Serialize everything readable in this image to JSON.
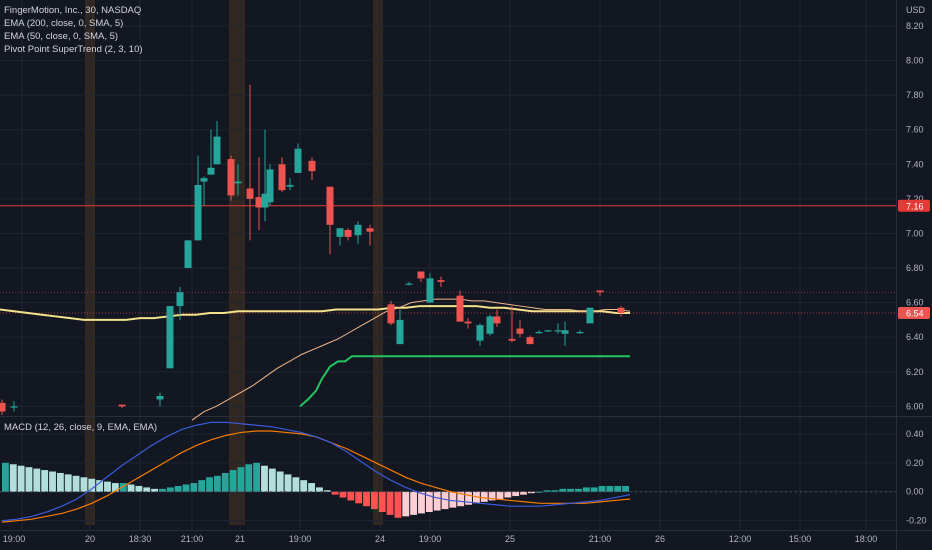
{
  "legend": {
    "title": "FingerMotion, Inc., 30, NASDAQ",
    "ema200": "EMA (200, close, 0, SMA, 5)",
    "ema50": "EMA (50, close, 0, SMA, 5)",
    "supertrend": "Pivot Point SuperTrend (2, 3, 10)",
    "macd": "MACD (12, 26, close, 9, EMA, EMA)"
  },
  "currency": "USD",
  "price_tag": "6.54",
  "line_tag": "7.16",
  "colors": {
    "background": "#131722",
    "up": "#26a69a",
    "down": "#ef5350",
    "ema200": "#f5e28a",
    "ema50": "#f0b98c",
    "supertrend": "#22c55e",
    "hline": "#e53935",
    "macd_line": "#3b5bdb",
    "signal_line": "#f57c00",
    "session_band": "#a86a1e"
  },
  "chart_data": [
    {
      "type": "candlestick",
      "title": "FingerMotion, Inc., 30, NASDAQ",
      "y_ticks": [
        "8.20",
        "8.00",
        "7.80",
        "7.60",
        "7.40",
        "7.20",
        "7.00",
        "6.80",
        "6.60",
        "6.40",
        "6.20",
        "6.00"
      ],
      "ylim": [
        5.95,
        8.35
      ],
      "x_ticks": [
        "19:00",
        "20",
        "18:30",
        "21:00",
        "21",
        "19:00",
        "24",
        "19:00",
        "25",
        "21:00",
        "26",
        "12:00",
        "15:00",
        "18:00"
      ],
      "horizontal_line": 7.16,
      "last_price": 6.54,
      "candles": [
        {
          "o": 6.02,
          "h": 6.04,
          "l": 5.95,
          "c": 5.97
        },
        {
          "o": 6.0,
          "h": 6.03,
          "l": 5.97,
          "c": 6.0
        },
        {
          "o": 6.01,
          "h": 6.01,
          "l": 5.99,
          "c": 6.0
        },
        {
          "o": 6.04,
          "h": 6.08,
          "l": 6.0,
          "c": 6.06
        },
        {
          "o": 6.22,
          "h": 6.58,
          "l": 6.22,
          "c": 6.58
        },
        {
          "o": 6.58,
          "h": 6.69,
          "l": 6.5,
          "c": 6.66
        },
        {
          "o": 6.8,
          "h": 6.96,
          "l": 6.8,
          "c": 6.96
        },
        {
          "o": 6.96,
          "h": 7.45,
          "l": 6.96,
          "c": 7.28
        },
        {
          "o": 7.3,
          "h": 7.33,
          "l": 7.16,
          "c": 7.32
        },
        {
          "o": 7.34,
          "h": 7.6,
          "l": 7.34,
          "c": 7.38
        },
        {
          "o": 7.4,
          "h": 7.65,
          "l": 7.4,
          "c": 7.56
        },
        {
          "o": 7.43,
          "h": 7.45,
          "l": 7.19,
          "c": 7.22
        },
        {
          "o": 7.29,
          "h": 7.4,
          "l": 7.22,
          "c": 7.3
        },
        {
          "o": 7.26,
          "h": 7.86,
          "l": 6.96,
          "c": 7.2
        },
        {
          "o": 7.21,
          "h": 7.44,
          "l": 7.02,
          "c": 7.15
        },
        {
          "o": 7.15,
          "h": 7.6,
          "l": 7.07,
          "c": 7.23
        },
        {
          "o": 7.18,
          "h": 7.4,
          "l": 7.16,
          "c": 7.37
        },
        {
          "o": 7.4,
          "h": 7.44,
          "l": 7.24,
          "c": 7.25
        },
        {
          "o": 7.27,
          "h": 7.32,
          "l": 7.25,
          "c": 7.28
        },
        {
          "o": 7.35,
          "h": 7.52,
          "l": 7.35,
          "c": 7.49
        },
        {
          "o": 7.42,
          "h": 7.44,
          "l": 7.31,
          "c": 7.36
        },
        {
          "o": 7.27,
          "h": 7.27,
          "l": 6.88,
          "c": 7.05
        },
        {
          "o": 6.98,
          "h": 7.03,
          "l": 6.93,
          "c": 7.03
        },
        {
          "o": 7.02,
          "h": 7.03,
          "l": 6.96,
          "c": 6.98
        },
        {
          "o": 6.99,
          "h": 7.07,
          "l": 6.94,
          "c": 7.05
        },
        {
          "o": 7.03,
          "h": 7.05,
          "l": 6.93,
          "c": 7.01
        },
        {
          "o": 6.59,
          "h": 6.61,
          "l": 6.47,
          "c": 6.48
        },
        {
          "o": 6.36,
          "h": 6.56,
          "l": 6.36,
          "c": 6.5
        },
        {
          "o": 6.71,
          "h": 6.72,
          "l": 6.7,
          "c": 6.71
        },
        {
          "o": 6.78,
          "h": 6.78,
          "l": 6.72,
          "c": 6.74
        },
        {
          "o": 6.6,
          "h": 6.77,
          "l": 6.6,
          "c": 6.74
        },
        {
          "o": 6.73,
          "h": 6.75,
          "l": 6.69,
          "c": 6.72
        },
        {
          "o": 6.64,
          "h": 6.67,
          "l": 6.49,
          "c": 6.49
        },
        {
          "o": 6.49,
          "h": 6.51,
          "l": 6.45,
          "c": 6.48
        },
        {
          "o": 6.38,
          "h": 6.48,
          "l": 6.35,
          "c": 6.47
        },
        {
          "o": 6.42,
          "h": 6.53,
          "l": 6.41,
          "c": 6.52
        },
        {
          "o": 6.52,
          "h": 6.56,
          "l": 6.46,
          "c": 6.48
        },
        {
          "o": 6.39,
          "h": 6.58,
          "l": 6.37,
          "c": 6.38
        },
        {
          "o": 6.45,
          "h": 6.5,
          "l": 6.4,
          "c": 6.42
        },
        {
          "o": 6.4,
          "h": 6.41,
          "l": 6.36,
          "c": 6.36
        },
        {
          "o": 6.43,
          "h": 6.44,
          "l": 6.42,
          "c": 6.43
        },
        {
          "o": 6.44,
          "h": 6.44,
          "l": 6.43,
          "c": 6.44
        },
        {
          "o": 6.44,
          "h": 6.48,
          "l": 6.42,
          "c": 6.44
        },
        {
          "o": 6.42,
          "h": 6.49,
          "l": 6.35,
          "c": 6.44
        },
        {
          "o": 6.43,
          "h": 6.44,
          "l": 6.42,
          "c": 6.43
        },
        {
          "o": 6.48,
          "h": 6.57,
          "l": 6.48,
          "c": 6.57
        },
        {
          "o": 6.67,
          "h": 6.67,
          "l": 6.64,
          "c": 6.66
        },
        {
          "o": 6.57,
          "h": 6.58,
          "l": 6.52,
          "c": 6.54
        }
      ],
      "ema200": [
        6.56,
        6.55,
        6.54,
        6.53,
        6.52,
        6.51,
        6.5,
        6.5,
        6.5,
        6.5,
        6.51,
        6.51,
        6.52,
        6.53,
        6.53,
        6.54,
        6.54,
        6.55,
        6.55,
        6.55,
        6.55,
        6.55,
        6.55,
        6.55,
        6.56,
        6.56,
        6.56,
        6.56,
        6.57,
        6.57,
        6.58,
        6.58,
        6.58,
        6.58,
        6.58,
        6.57,
        6.57,
        6.56,
        6.55,
        6.55,
        6.55,
        6.55,
        6.55,
        6.55,
        6.54,
        6.54
      ],
      "ema50": [
        5.92,
        5.97,
        6.0,
        6.04,
        6.08,
        6.12,
        6.17,
        6.22,
        6.26,
        6.3,
        6.33,
        6.36,
        6.39,
        6.43,
        6.47,
        6.51,
        6.55,
        6.57,
        6.6,
        6.61,
        6.62,
        6.62,
        6.62,
        6.61,
        6.61,
        6.6,
        6.59,
        6.58,
        6.57,
        6.56,
        6.56,
        6.56,
        6.55,
        6.55,
        6.56,
        6.56,
        6.55
      ],
      "supertrend": [
        6.0,
        6.04,
        6.09,
        6.16,
        6.23,
        6.26,
        6.26,
        6.29,
        6.29,
        6.29,
        6.29,
        6.29,
        6.29,
        6.29,
        6.29,
        6.29,
        6.29,
        6.29,
        6.29,
        6.29,
        6.29,
        6.29,
        6.29,
        6.29,
        6.29,
        6.29,
        6.29,
        6.29,
        6.29,
        6.29,
        6.29,
        6.29,
        6.29,
        6.29,
        6.29,
        6.29,
        6.29,
        6.29
      ]
    },
    {
      "type": "bar",
      "title": "MACD (12, 26, close, 9, EMA, EMA)",
      "y_ticks": [
        "0.40",
        "0.20",
        "0.00",
        "-0.20"
      ],
      "ylim": [
        -0.23,
        0.51
      ],
      "histogram": [
        0.2,
        0.19,
        0.18,
        0.17,
        0.16,
        0.15,
        0.14,
        0.13,
        0.12,
        0.11,
        0.1,
        0.09,
        0.08,
        0.07,
        0.06,
        0.06,
        0.05,
        0.04,
        0.03,
        0.02,
        0.02,
        0.03,
        0.04,
        0.05,
        0.06,
        0.08,
        0.1,
        0.11,
        0.13,
        0.15,
        0.17,
        0.19,
        0.2,
        0.18,
        0.16,
        0.14,
        0.12,
        0.1,
        0.08,
        0.06,
        0.03,
        0.01,
        -0.02,
        -0.04,
        -0.06,
        -0.08,
        -0.1,
        -0.12,
        -0.14,
        -0.16,
        -0.18,
        -0.17,
        -0.16,
        -0.15,
        -0.14,
        -0.13,
        -0.12,
        -0.11,
        -0.1,
        -0.09,
        -0.08,
        -0.07,
        -0.06,
        -0.05,
        -0.04,
        -0.03,
        -0.02,
        -0.01,
        0.0,
        0.01,
        0.01,
        0.02,
        0.02,
        0.02,
        0.03,
        0.03,
        0.04,
        0.04,
        0.04,
        0.04
      ],
      "macd_line": [
        -0.2,
        -0.19,
        -0.17,
        -0.14,
        -0.1,
        -0.05,
        0.02,
        0.1,
        0.18,
        0.25,
        0.32,
        0.38,
        0.43,
        0.46,
        0.48,
        0.48,
        0.47,
        0.46,
        0.45,
        0.43,
        0.41,
        0.38,
        0.34,
        0.28,
        0.21,
        0.14,
        0.08,
        0.03,
        -0.01,
        -0.04,
        -0.06,
        -0.07,
        -0.08,
        -0.09,
        -0.1,
        -0.1,
        -0.1,
        -0.09,
        -0.08,
        -0.07,
        -0.06,
        -0.04,
        -0.02
      ],
      "signal_line": [
        -0.21,
        -0.2,
        -0.19,
        -0.17,
        -0.15,
        -0.12,
        -0.08,
        -0.03,
        0.03,
        0.09,
        0.15,
        0.21,
        0.27,
        0.32,
        0.36,
        0.39,
        0.41,
        0.42,
        0.42,
        0.41,
        0.4,
        0.38,
        0.34,
        0.3,
        0.25,
        0.2,
        0.15,
        0.1,
        0.06,
        0.03,
        0.0,
        -0.02,
        -0.04,
        -0.05,
        -0.06,
        -0.07,
        -0.08,
        -0.08,
        -0.08,
        -0.08,
        -0.07,
        -0.06,
        -0.05
      ]
    }
  ]
}
